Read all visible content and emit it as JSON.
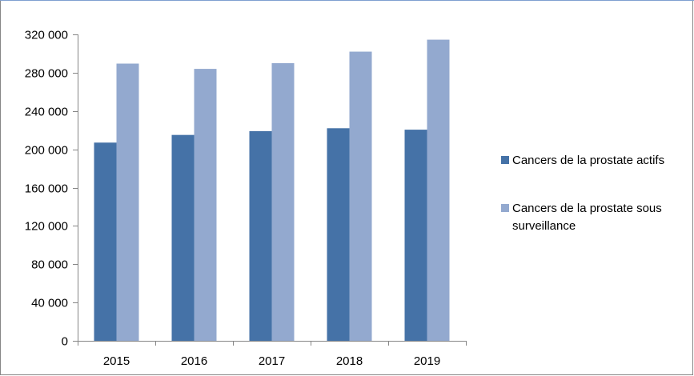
{
  "chart_data": {
    "type": "bar",
    "title": "",
    "xlabel": "",
    "ylabel": "",
    "categories": [
      "2015",
      "2016",
      "2017",
      "2018",
      "2019"
    ],
    "series": [
      {
        "name": "Cancers de la prostate actifs",
        "values": [
          207000,
          215000,
          219000,
          222000,
          220500
        ],
        "color": "#4572a7"
      },
      {
        "name": "Cancers de la prostate sous surveillance",
        "values": [
          289500,
          284000,
          290000,
          302000,
          314500
        ],
        "color": "#93a9cf"
      }
    ],
    "ylim": [
      0,
      320000
    ],
    "yticks": [
      0,
      40000,
      80000,
      120000,
      160000,
      200000,
      240000,
      280000,
      320000
    ],
    "ytick_labels": [
      "0",
      "40 000",
      "80 000",
      "120 000",
      "160 000",
      "200 000",
      "240 000",
      "280 000",
      "320 000"
    ],
    "grid": false,
    "legend_position": "right"
  },
  "legend": {
    "items": [
      {
        "lines": [
          "Cancers de la prostate actifs"
        ]
      },
      {
        "lines": [
          "Cancers de la prostate sous",
          "surveillance"
        ]
      }
    ]
  },
  "colors": {
    "frame": "#868686",
    "axis": "#868686",
    "top_border": "#7f9fd0"
  }
}
